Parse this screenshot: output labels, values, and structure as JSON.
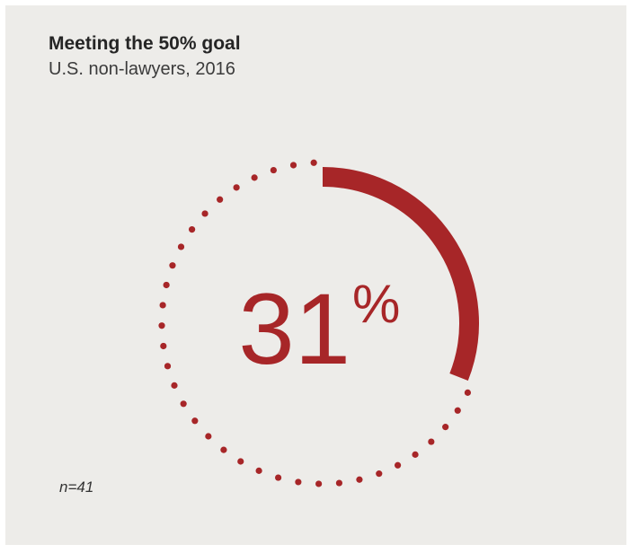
{
  "colors": {
    "background": "#edece9",
    "accent": "#a72628",
    "text": "#252525"
  },
  "chart_data": {
    "type": "pie",
    "subtype": "progress-ring",
    "title": "Meeting the 50% goal",
    "subtitle": "U.S. non-lawyers, 2016",
    "value": 31,
    "max": 100,
    "value_label": "31",
    "unit": "%",
    "remainder_style": "dotted",
    "note": "n=41"
  }
}
